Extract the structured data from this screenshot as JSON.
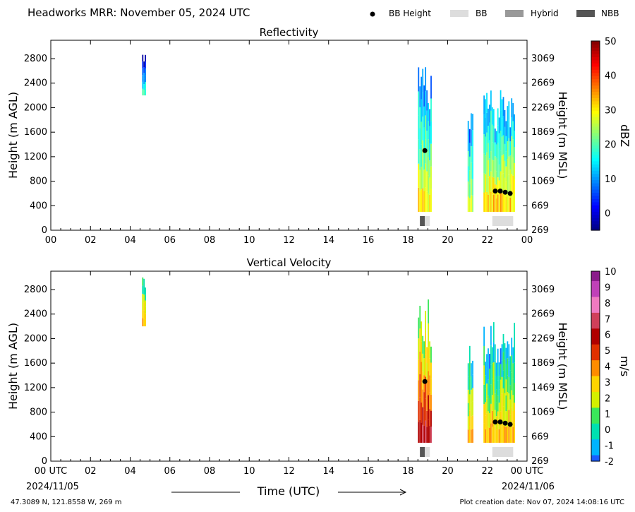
{
  "header": {
    "title": "Headworks MRR:  November 05, 2024 UTC",
    "legend": [
      {
        "label": "BB Height",
        "kind": "dot",
        "color": "#000000"
      },
      {
        "label": "BB",
        "kind": "box",
        "color": "#dddddd"
      },
      {
        "label": "Hybrid",
        "kind": "box",
        "color": "#999999"
      },
      {
        "label": "NBB",
        "kind": "box",
        "color": "#555555"
      }
    ]
  },
  "footer": {
    "start_time": "00 UTC",
    "start_date": "2024/11/05",
    "end_time": "00 UTC",
    "end_date": "2024/11/06",
    "xlabel": "Time (UTC)",
    "location": "47.3089 N, 121.8558 W, 269 m",
    "created": "Plot creation date: Nov 07, 2024 14:08:16 UTC"
  },
  "chart_data": [
    {
      "type": "heatmap",
      "title": "Reflectivity",
      "xlabel": "",
      "ylabel": "Height (m AGL)",
      "ylabel_right": "Height (m MSL)",
      "colorbar_label": "dBZ",
      "xlim": [
        0,
        24
      ],
      "ylim": [
        0,
        3100
      ],
      "x_ticks": [
        "00",
        "02",
        "04",
        "06",
        "08",
        "10",
        "12",
        "14",
        "16",
        "18",
        "20",
        "22",
        "00"
      ],
      "y_ticks": [
        0,
        400,
        800,
        1200,
        1600,
        2000,
        2400,
        2800
      ],
      "y_ticks_right": [
        269,
        669,
        1069,
        1469,
        1869,
        2269,
        2669,
        3069
      ],
      "colorbar_range": [
        -5,
        50
      ],
      "colorbar_ticks": [
        0,
        10,
        20,
        30,
        40,
        50
      ],
      "bb_height": [
        {
          "time": 18.85,
          "height": 1300
        },
        {
          "time": 22.4,
          "height": 640
        },
        {
          "time": 22.65,
          "height": 640
        },
        {
          "time": 22.9,
          "height": 620
        },
        {
          "time": 23.15,
          "height": 600
        }
      ],
      "bb_type_bar": [
        {
          "type": "NBB",
          "start": 18.6,
          "end": 18.85
        },
        {
          "type": "BB",
          "start": 18.85,
          "end": 19.1
        },
        {
          "type": "BB",
          "start": 22.25,
          "end": 23.3
        }
      ],
      "echo_columns": [
        {
          "start": 4.6,
          "end": 4.8,
          "bottom": 2200,
          "top": 3000,
          "value": 8
        },
        {
          "start": 18.5,
          "end": 19.2,
          "bottom": 300,
          "top": 2700,
          "value": 18
        },
        {
          "start": 21.0,
          "end": 21.3,
          "bottom": 300,
          "top": 2000,
          "value": 16
        },
        {
          "start": 21.8,
          "end": 23.4,
          "bottom": 300,
          "top": 2300,
          "value": 20
        }
      ]
    },
    {
      "type": "heatmap",
      "title": "Vertical Velocity",
      "xlabel": "Time (UTC)",
      "ylabel": "Height (m AGL)",
      "ylabel_right": "Height (m MSL)",
      "colorbar_label": "m/s",
      "xlim": [
        0,
        24
      ],
      "ylim": [
        0,
        3100
      ],
      "x_ticks": [
        "00 UTC",
        "02",
        "04",
        "06",
        "08",
        "10",
        "12",
        "14",
        "16",
        "18",
        "20",
        "22",
        "00 UTC"
      ],
      "y_ticks": [
        0,
        400,
        800,
        1200,
        1600,
        2000,
        2400,
        2800
      ],
      "y_ticks_right": [
        269,
        669,
        1069,
        1469,
        1869,
        2269,
        2669,
        3069
      ],
      "colorbar_range": [
        -2,
        10
      ],
      "colorbar_ticks": [
        -2,
        -1,
        0,
        1,
        2,
        3,
        4,
        5,
        6,
        7,
        8,
        9,
        10
      ],
      "bb_height": [
        {
          "time": 18.85,
          "height": 1300
        },
        {
          "time": 22.4,
          "height": 640
        },
        {
          "time": 22.65,
          "height": 640
        },
        {
          "time": 22.9,
          "height": 620
        },
        {
          "time": 23.15,
          "height": 600
        }
      ],
      "bb_type_bar": [
        {
          "type": "NBB",
          "start": 18.6,
          "end": 18.85
        },
        {
          "type": "BB",
          "start": 18.85,
          "end": 19.1
        },
        {
          "type": "BB",
          "start": 22.25,
          "end": 23.3
        }
      ],
      "echo_columns": [
        {
          "start": 4.6,
          "end": 4.8,
          "bottom": 2200,
          "top": 3000,
          "value": 1.5
        },
        {
          "start": 18.5,
          "end": 19.2,
          "bottom": 300,
          "top": 2700,
          "value": 3.5
        },
        {
          "start": 21.0,
          "end": 21.3,
          "bottom": 300,
          "top": 2000,
          "value": 1
        },
        {
          "start": 21.8,
          "end": 23.4,
          "bottom": 300,
          "top": 2300,
          "value": 1
        }
      ]
    }
  ]
}
